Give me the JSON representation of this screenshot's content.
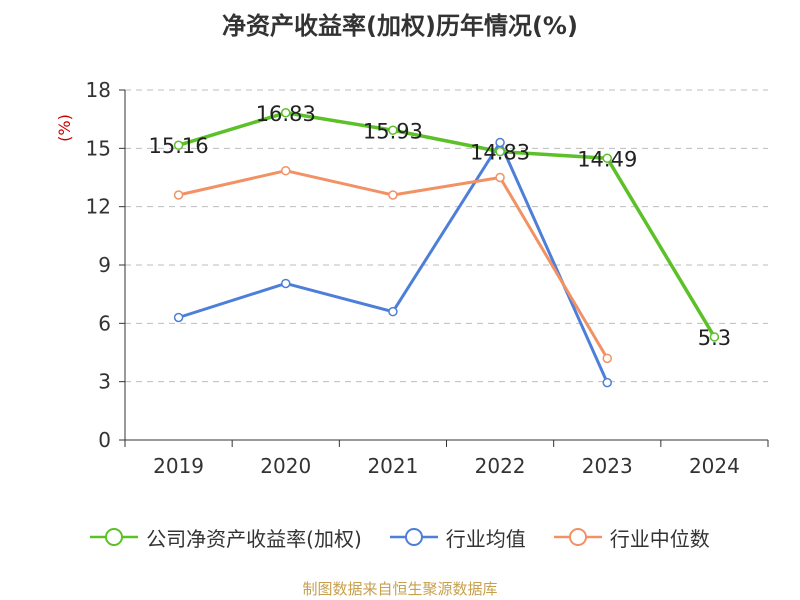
{
  "title": "净资产收益率(加权)历年情况(%)",
  "source": "制图数据来自恒生聚源数据库",
  "chart_data": {
    "type": "line",
    "title": "净资产收益率(加权)历年情况(%)",
    "ylabel": "(%)",
    "xlabel": "",
    "categories": [
      "2019",
      "2020",
      "2021",
      "2022",
      "2023",
      "2024"
    ],
    "ylim": [
      0,
      18
    ],
    "yticks": [
      0,
      3,
      6,
      9,
      12,
      15,
      18
    ],
    "grid": true,
    "legend_position": "bottom",
    "series": [
      {
        "name": "公司净资产收益率(加权)",
        "color": "#5cc128",
        "values": [
          15.16,
          16.83,
          15.93,
          14.83,
          14.49,
          5.3
        ],
        "labels": [
          "15.16",
          "16.83",
          "15.93",
          "14.83",
          "14.49",
          "5.3"
        ]
      },
      {
        "name": "行业均值",
        "color": "#4d7fd9",
        "values": [
          6.3,
          8.05,
          6.6,
          15.3,
          2.95,
          null
        ],
        "labels": null
      },
      {
        "name": "行业中位数",
        "color": "#f29164",
        "values": [
          12.6,
          13.85,
          12.6,
          13.5,
          4.2,
          null
        ],
        "labels": null
      }
    ]
  }
}
